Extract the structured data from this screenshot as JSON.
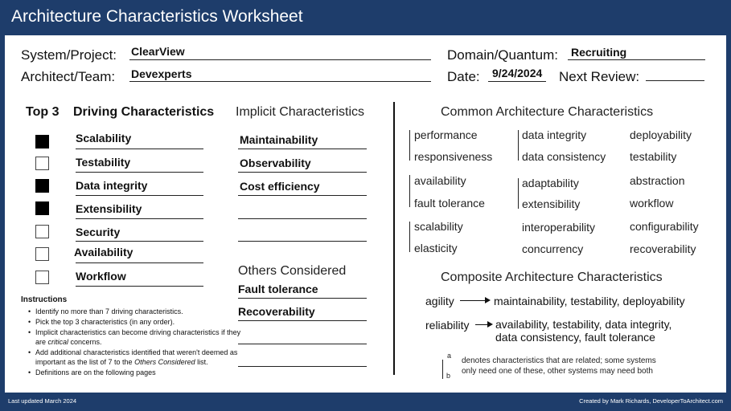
{
  "title": "Architecture Characteristics Worksheet",
  "header": {
    "system_label": "System/Project:",
    "system_value": "ClearView",
    "domain_label": "Domain/Quantum:",
    "domain_value": "Recruiting",
    "architect_label": "Architect/Team:",
    "architect_value": "Devexperts",
    "date_label": "Date:",
    "date_value": "9/24/2024",
    "review_label": "Next Review:",
    "review_value": ""
  },
  "driving": {
    "top3_label": "Top 3",
    "title": "Driving Characteristics",
    "items": [
      {
        "label": "Scalability",
        "top3": true
      },
      {
        "label": "Testability",
        "top3": false
      },
      {
        "label": "Data integrity",
        "top3": true
      },
      {
        "label": "Extensibility",
        "top3": true
      },
      {
        "label": "Security",
        "top3": false
      },
      {
        "label": "Availability",
        "top3": false
      },
      {
        "label": "Workflow",
        "top3": false
      }
    ]
  },
  "implicit": {
    "title": "Implicit Characteristics",
    "items": [
      "Maintainability",
      "Observability",
      "Cost efficiency",
      "",
      ""
    ]
  },
  "others": {
    "title": "Others Considered",
    "items": [
      "Fault tolerance",
      "Recoverability",
      "",
      ""
    ]
  },
  "instructions": {
    "title": "Instructions",
    "items": [
      {
        "text": "Identify no more than 7 driving characteristics."
      },
      {
        "text": "Pick the top 3 characteristics (in any order)."
      },
      {
        "pre": "Implicit characteristics can become driving characteristics if they are ",
        "em": "critical",
        "post": " concerns."
      },
      {
        "pre": "Add additional characteristics identified that weren't deemed as important as the list of 7 to the ",
        "em": "Others Considered",
        "post": " list."
      },
      {
        "text": "Definitions are on the following pages"
      }
    ]
  },
  "common": {
    "title": "Common Architecture Characteristics",
    "col1": [
      "performance",
      "responsiveness",
      "availability",
      "fault tolerance",
      "scalability",
      "elasticity"
    ],
    "col2": [
      "data integrity",
      "data consistency",
      "adaptability",
      "extensibility",
      "interoperability",
      "concurrency"
    ],
    "col3": [
      "deployability",
      "testability",
      "abstraction",
      "workflow",
      "configurability",
      "recoverability"
    ]
  },
  "composite": {
    "title": "Composite Architecture Characteristics",
    "rows": [
      {
        "name": "agility",
        "lines": [
          "maintainability, testability, deployability"
        ]
      },
      {
        "name": "reliability",
        "lines": [
          "availability, testability, data integrity,",
          "data consistency, fault tolerance"
        ]
      }
    ]
  },
  "legend": {
    "a": "a",
    "b": "b",
    "line1": "denotes characteristics that are related; some systems",
    "line2": "only need one of these, other systems may need both"
  },
  "footer": {
    "left": "Last updated March 2024",
    "right": "Created by Mark Richards, DeveloperToArchitect.com"
  }
}
